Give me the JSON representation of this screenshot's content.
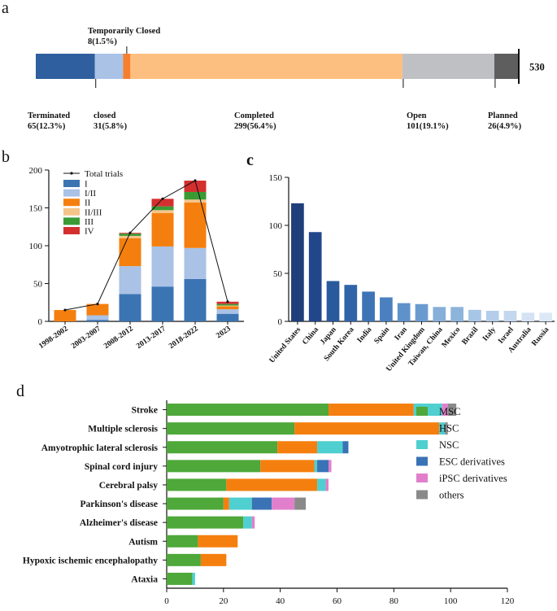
{
  "panels": {
    "a": "a",
    "b": "b",
    "c": "c",
    "d": "d"
  },
  "chart_data": [
    {
      "id": "a",
      "type": "bar",
      "orientation": "horizontal-stacked-100",
      "title": "",
      "total_label": "530",
      "segments": [
        {
          "name": "Terminated",
          "value": 65,
          "label": "65(12.3%)",
          "color": "#2f5f9e"
        },
        {
          "name": "closed",
          "value": 31,
          "label": "31(5.8%)",
          "color": "#a9c2e6"
        },
        {
          "name": "Temporarily Closed",
          "value": 8,
          "label": "8(1.5%)",
          "color": "#f57f2e"
        },
        {
          "name": "Completed",
          "value": 299,
          "label": "299(56.4%)",
          "color": "#fdbf80"
        },
        {
          "name": "Open",
          "value": 101,
          "label": "101(19.1%)",
          "color": "#bfc0c4"
        },
        {
          "name": "Planned",
          "value": 26,
          "label": "26(4.9%)",
          "color": "#5e5e5e"
        }
      ]
    },
    {
      "id": "b",
      "type": "bar",
      "orientation": "vertical-stacked",
      "categories": [
        "1998-2002",
        "2003-2007",
        "2008-2012",
        "2013-2017",
        "2018-2022",
        "2023"
      ],
      "ylim": [
        0,
        200
      ],
      "yticks": [
        0,
        50,
        100,
        150,
        200
      ],
      "series": [
        {
          "name": "I",
          "color": "#3b74b3",
          "values": [
            0,
            2,
            36,
            46,
            56,
            10
          ]
        },
        {
          "name": "I/II",
          "color": "#a9c2e6",
          "values": [
            0,
            6,
            37,
            53,
            41,
            6
          ]
        },
        {
          "name": "II",
          "color": "#f57f0e",
          "values": [
            15,
            15,
            37,
            44,
            60,
            4
          ]
        },
        {
          "name": "II/III",
          "color": "#f5c48a",
          "values": [
            0,
            0,
            3,
            4,
            4,
            1
          ]
        },
        {
          "name": "III",
          "color": "#3a9b35",
          "values": [
            0,
            0,
            3,
            5,
            10,
            2
          ]
        },
        {
          "name": "IV",
          "color": "#d42f2f",
          "values": [
            0,
            0,
            1,
            10,
            15,
            3
          ]
        }
      ],
      "line": {
        "name": "Total trials",
        "values": [
          15,
          23,
          117,
          162,
          186,
          26
        ]
      }
    },
    {
      "id": "c",
      "type": "bar",
      "categories": [
        "United States",
        "China",
        "Japan",
        "South Korea",
        "India",
        "Spain",
        "Iran",
        "United Kingdom",
        "Taiwan, China",
        "Mexico",
        "Brazil",
        "Italy",
        "Israel",
        "Australia",
        "Russia"
      ],
      "values": [
        123,
        93,
        42,
        38,
        31,
        25,
        19,
        18,
        15,
        15,
        12,
        11,
        11,
        9,
        9
      ],
      "colors": [
        "#1f3f7a",
        "#22468a",
        "#2a5a9e",
        "#3064a8",
        "#3d74b6",
        "#4a80bf",
        "#5f92cb",
        "#6a9bd0",
        "#86afd9",
        "#8db4db",
        "#a7c6e6",
        "#b3cdeb",
        "#c3d7ef",
        "#d4e2f3",
        "#dde8f6"
      ],
      "ylim": [
        0,
        150
      ],
      "yticks": [
        0,
        50,
        100,
        150
      ]
    },
    {
      "id": "d",
      "type": "bar",
      "orientation": "horizontal-stacked",
      "categories": [
        "Stroke",
        "Multiple sclerosis",
        "Amyotrophic lateral sclerosis",
        "Spinal cord injury",
        "Cerebral palsy",
        "Parkinson's disease",
        "Alzheimer's disease",
        "Autism",
        "Hypoxic ischemic encephalopathy",
        "Ataxia"
      ],
      "xlim": [
        0,
        120
      ],
      "xticks": [
        0,
        20,
        40,
        60,
        80,
        100,
        120
      ],
      "series": [
        {
          "name": "MSC",
          "color": "#4ea83a",
          "values": [
            57,
            45,
            39,
            33,
            21,
            20,
            27,
            11,
            12,
            9
          ]
        },
        {
          "name": "HSC",
          "color": "#f57f0e",
          "values": [
            30,
            51,
            14,
            19,
            32,
            2,
            0,
            14,
            9,
            0
          ]
        },
        {
          "name": "NSC",
          "color": "#4fcfcf",
          "values": [
            10,
            2,
            9,
            1,
            3,
            8,
            3,
            0,
            0,
            1
          ]
        },
        {
          "name": "ESC derivatives",
          "color": "#3a73b5",
          "values": [
            0,
            0,
            2,
            4,
            0,
            7,
            0,
            0,
            0,
            0
          ]
        },
        {
          "name": "iPSC derivatives",
          "color": "#e17fcc",
          "values": [
            2,
            0,
            0,
            1,
            1,
            8,
            1,
            0,
            0,
            0
          ]
        },
        {
          "name": "others",
          "color": "#8a8a8a",
          "values": [
            3,
            1,
            0,
            0,
            0,
            4,
            0,
            0,
            0,
            0
          ]
        }
      ]
    }
  ]
}
